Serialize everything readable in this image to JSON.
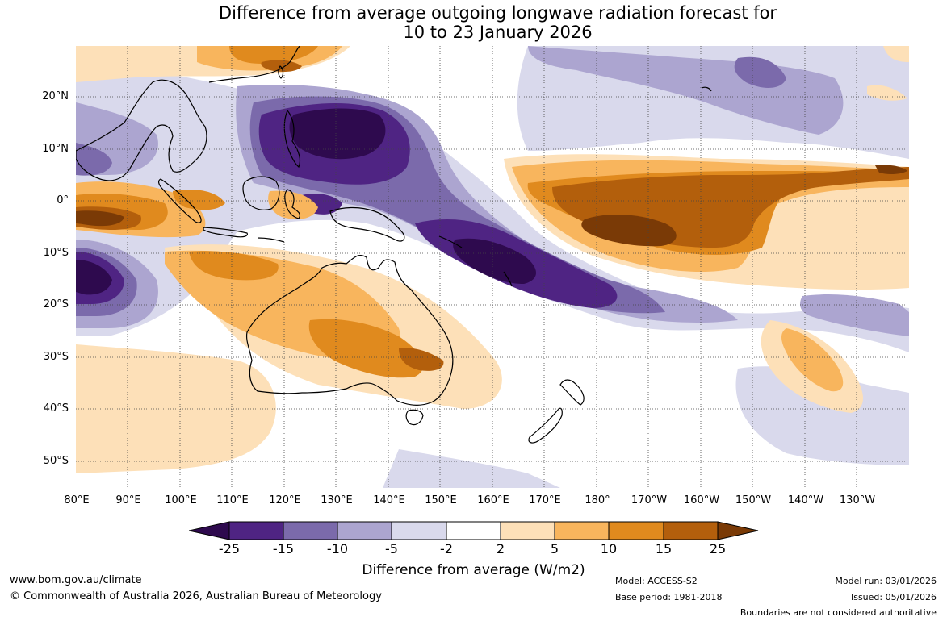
{
  "header": {
    "title_line1": "Difference from average outgoing longwave radiation forecast for",
    "title_line2": "10 to 23 January 2026"
  },
  "map": {
    "lat_labels": [
      "20°N",
      "10°N",
      "0°",
      "10°S",
      "20°S",
      "30°S",
      "40°S",
      "50°S"
    ],
    "lon_labels": [
      "80°E",
      "90°E",
      "100°E",
      "110°E",
      "120°E",
      "130°E",
      "140°E",
      "150°E",
      "160°E",
      "170°E",
      "180°",
      "170°W",
      "160°W",
      "150°W",
      "140°W",
      "130°W"
    ]
  },
  "colorbar": {
    "ticks": [
      "-25",
      "-15",
      "-10",
      "-5",
      "-2",
      "2",
      "5",
      "10",
      "15",
      "25"
    ],
    "colors": [
      "#2e0a4e",
      "#4f2483",
      "#7b6aab",
      "#aca5d0",
      "#d9d9ec",
      "#ffffff",
      "#fde0b8",
      "#f8b55d",
      "#e08a1e",
      "#b35f0c",
      "#7a3a06"
    ],
    "label": "Difference from average (W/m2)"
  },
  "footer": {
    "website": "www.bom.gov.au/climate",
    "copyright": "© Commonwealth of Australia 2026, Australian Bureau of Meteorology",
    "model": "Model: ACCESS-S2",
    "base_period": "Base period: 1981-2018",
    "model_run": "Model run: 03/01/2026",
    "issued": "Issued: 05/01/2026",
    "disclaimer": "Boundaries are not considered authoritative"
  }
}
